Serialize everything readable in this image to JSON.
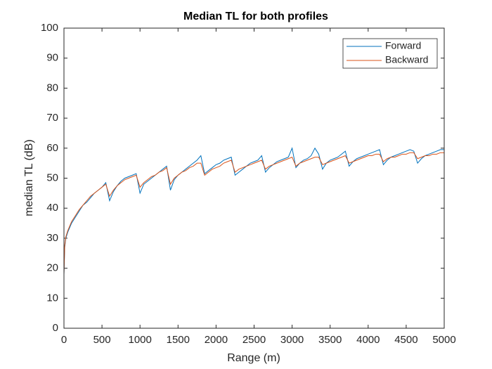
{
  "chart_data": {
    "type": "line",
    "title": "Median TL for both profiles",
    "x_label": "Range (m)",
    "y_label": "median TL (dB)",
    "xlim": [
      0,
      5000
    ],
    "xticks": [
      0,
      500,
      1000,
      1500,
      2000,
      2500,
      3000,
      3500,
      4000,
      4500,
      5000
    ],
    "ylim": [
      0,
      100
    ],
    "yticks": [
      0,
      10,
      20,
      30,
      40,
      50,
      60,
      70,
      80,
      90,
      100
    ],
    "legend_position": "upper-right",
    "grid": false,
    "x": [
      0,
      10,
      25,
      50,
      75,
      100,
      150,
      200,
      250,
      300,
      350,
      400,
      450,
      500,
      550,
      600,
      650,
      700,
      750,
      800,
      850,
      900,
      950,
      1000,
      1050,
      1100,
      1150,
      1200,
      1250,
      1300,
      1350,
      1400,
      1450,
      1500,
      1550,
      1600,
      1650,
      1700,
      1750,
      1800,
      1850,
      1900,
      1950,
      2000,
      2050,
      2100,
      2150,
      2200,
      2250,
      2300,
      2350,
      2400,
      2450,
      2500,
      2550,
      2600,
      2650,
      2700,
      2750,
      2800,
      2850,
      2900,
      2950,
      3000,
      3050,
      3100,
      3150,
      3200,
      3250,
      3300,
      3350,
      3400,
      3450,
      3500,
      3550,
      3600,
      3650,
      3700,
      3750,
      3800,
      3850,
      3900,
      3950,
      4000,
      4050,
      4100,
      4150,
      4200,
      4250,
      4300,
      4350,
      4400,
      4450,
      4500,
      4550,
      4600,
      4650,
      4700,
      4750,
      4800,
      4850,
      4900,
      4950,
      5000
    ],
    "series": [
      {
        "name": "Forward",
        "color": "#0072BD",
        "values": [
          18,
          27,
          30,
          32,
          33.5,
          35,
          37,
          39,
          41,
          42,
          43.5,
          45,
          46,
          47,
          48.5,
          42.5,
          45.5,
          47.5,
          49,
          50,
          50.5,
          51,
          51.5,
          45,
          48,
          49,
          50,
          51,
          52,
          53,
          54,
          46,
          49.5,
          51,
          52,
          53,
          54,
          55,
          56,
          57.5,
          51.5,
          52.5,
          53.5,
          54.5,
          55,
          56,
          56.5,
          57,
          51,
          52,
          53,
          54,
          55,
          55.5,
          56,
          57.5,
          52,
          53.5,
          54.5,
          55.5,
          56,
          56.5,
          57,
          60,
          53.5,
          55,
          56,
          56.5,
          57.5,
          60,
          58,
          53,
          55,
          56,
          56.5,
          57,
          58,
          59,
          54,
          55.5,
          56.5,
          57,
          57.5,
          58,
          58.5,
          59,
          59.5,
          54.5,
          56,
          57,
          57.5,
          58,
          58.5,
          59,
          59.5,
          59,
          55,
          56.5,
          57.5,
          58,
          58.5,
          59,
          59.5,
          59.5
        ]
      },
      {
        "name": "Backward",
        "color": "#D95319",
        "values": [
          18,
          27.5,
          30.5,
          32.5,
          34,
          35.5,
          37.5,
          39.5,
          41,
          42.5,
          44,
          45,
          46,
          47,
          48,
          44,
          46,
          47.5,
          48.5,
          49.5,
          50,
          50.5,
          51,
          47,
          48.5,
          49.5,
          50.5,
          51,
          52,
          52.5,
          53.5,
          48,
          50,
          51,
          52,
          52.5,
          53.5,
          54,
          55,
          55,
          51,
          52,
          53,
          53.5,
          54,
          55,
          55.5,
          56,
          52,
          53,
          53.5,
          54,
          54.5,
          55,
          55.5,
          56,
          53,
          54,
          54.5,
          55,
          55.5,
          56,
          56.5,
          57,
          54,
          55,
          55.5,
          56,
          56.5,
          57,
          57,
          54.5,
          55,
          55.5,
          56,
          56.5,
          57,
          57.5,
          55,
          55.5,
          56,
          56.5,
          57,
          57.5,
          57.5,
          58,
          58,
          55.5,
          56.5,
          57,
          57,
          57.5,
          58,
          58,
          58.5,
          58.5,
          56.5,
          57,
          57.5,
          57.5,
          58,
          58,
          58.5,
          58.5
        ]
      }
    ]
  }
}
